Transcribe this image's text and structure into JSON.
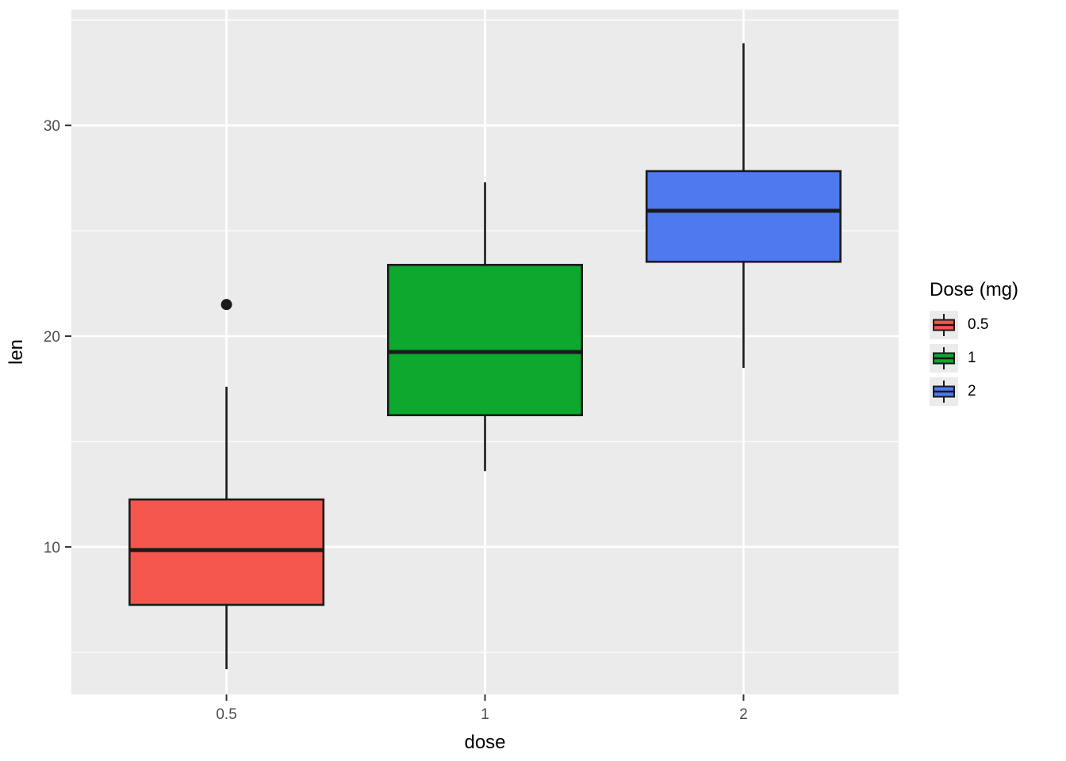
{
  "chart_data": {
    "type": "boxplot",
    "title": "",
    "xlabel": "dose",
    "ylabel": "len",
    "categories": [
      "0.5",
      "1",
      "2"
    ],
    "y_ticks": [
      10,
      20,
      30
    ],
    "y_minor_ticks": [
      5,
      15,
      25,
      35
    ],
    "ylim": [
      3.0,
      35.5
    ],
    "grid": true,
    "series": [
      {
        "category": "0.5",
        "fill": "#F4564E",
        "whisker_low": 4.2,
        "q1": 7.25,
        "median": 9.85,
        "q3": 12.25,
        "whisker_high": 17.6,
        "outliers": [
          21.5
        ]
      },
      {
        "category": "1",
        "fill": "#0DA82E",
        "whisker_low": 13.6,
        "q1": 16.25,
        "median": 19.25,
        "q3": 23.38,
        "whisker_high": 27.3,
        "outliers": []
      },
      {
        "category": "2",
        "fill": "#4E79EF",
        "whisker_low": 18.5,
        "q1": 23.53,
        "median": 25.95,
        "q3": 27.83,
        "whisker_high": 33.9,
        "outliers": []
      }
    ],
    "legend": {
      "title": "Dose (mg)",
      "position": "right",
      "entries": [
        {
          "label": "0.5",
          "color": "#F4564E"
        },
        {
          "label": "1",
          "color": "#0DA82E"
        },
        {
          "label": "2",
          "color": "#4E79EF"
        }
      ]
    },
    "colors": {
      "panel_bg": "#EBEBEB",
      "grid": "#FFFFFF",
      "box_border": "#1A1A1A",
      "tick_mark": "#333333",
      "tick_label": "#4D4D4D",
      "axis_title": "#000000",
      "legend_key_bg": "#EBEBEB"
    }
  }
}
